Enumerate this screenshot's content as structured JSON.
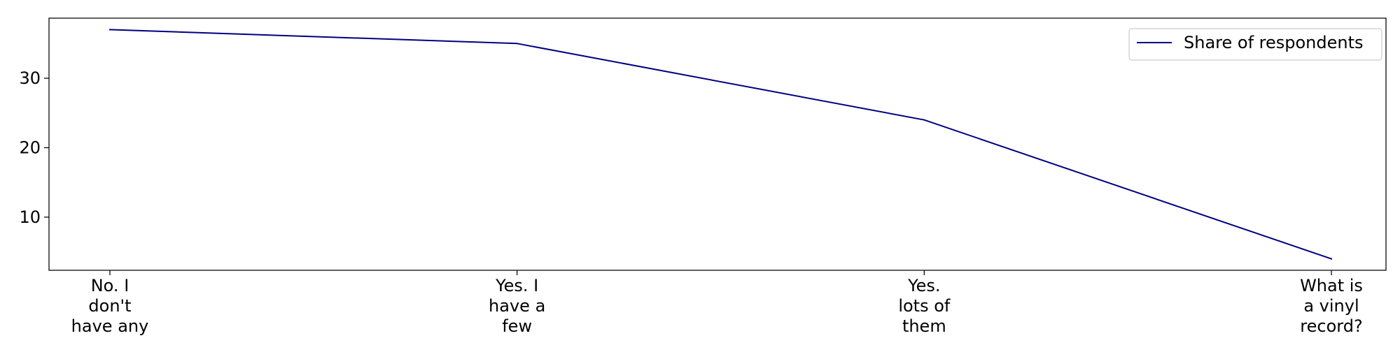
{
  "chart_data": {
    "type": "line",
    "categories": [
      [
        "No. I",
        "don't",
        "have any"
      ],
      [
        "Yes. I",
        "have a",
        "few"
      ],
      [
        "Yes.",
        "lots of",
        "them"
      ],
      [
        "What is",
        "a vinyl",
        "record?"
      ]
    ],
    "series": [
      {
        "name": "Share of respondents",
        "values": [
          37,
          35,
          24,
          4
        ],
        "color": "#000080"
      }
    ],
    "y_ticks": [
      10,
      20,
      30
    ],
    "ylim": [
      2.35,
      38.65
    ],
    "grid": false,
    "legend": {
      "placement": "top-right"
    }
  }
}
